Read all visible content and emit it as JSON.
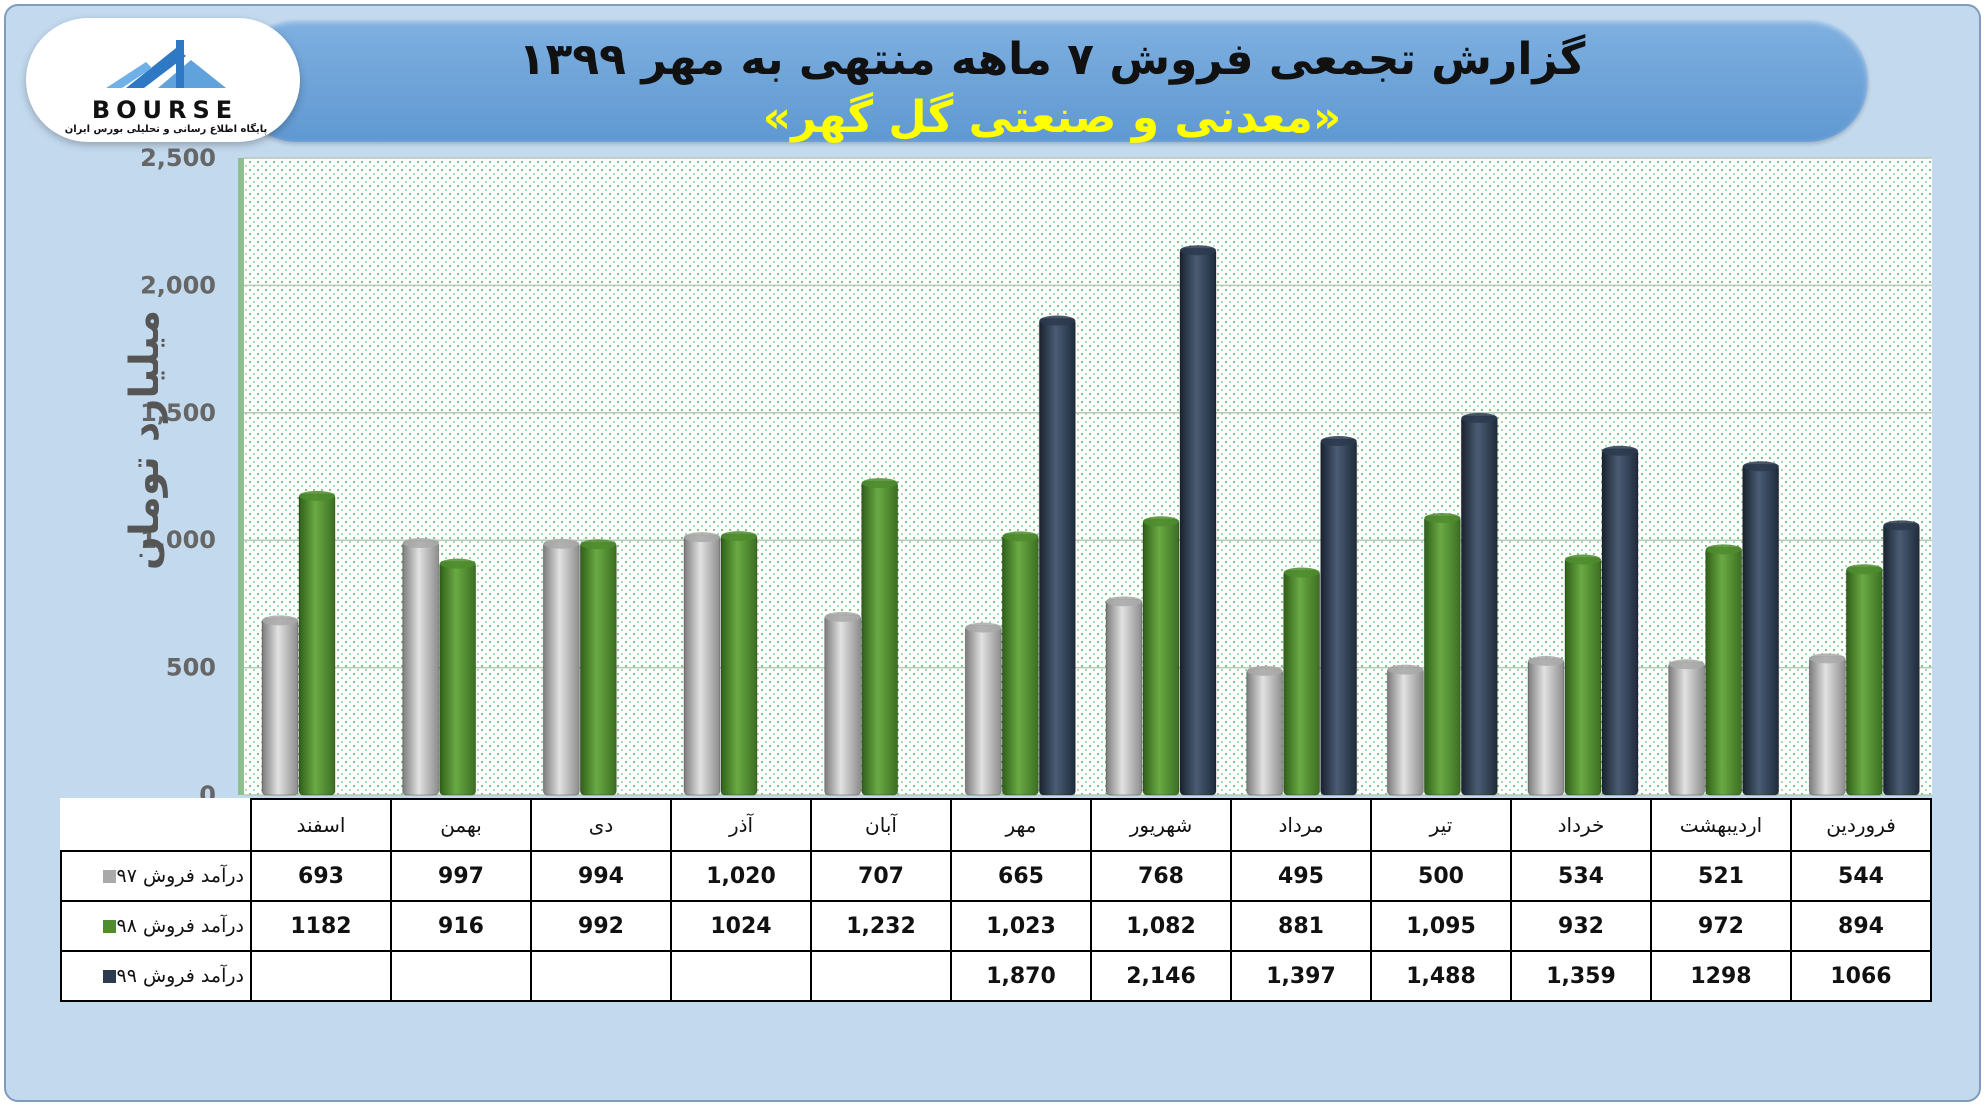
{
  "header": {
    "title": "گزارش تجمعی فروش ۷ ماهه منتهی به مهر ۱۳۹۹",
    "subtitle": "«معدنی و صنعتی گل گهر»"
  },
  "logo": {
    "wordmark": "BOURSE",
    "tagline": "پایگاه اطلاع رسانی و تحلیلی بورس ایران"
  },
  "chart_data": {
    "type": "bar",
    "ylabel": "میلیارد تومان",
    "ylim": [
      0,
      2500
    ],
    "yticks": [
      0,
      500,
      1000,
      1500,
      2000,
      2500
    ],
    "ytick_labels": [
      "0",
      "500",
      "1,000",
      "1,500",
      "2,000",
      "2,500"
    ],
    "grid": true,
    "legend_position": "table-left",
    "categories": [
      "اسفند",
      "بهمن",
      "دی",
      "آذر",
      "آبان",
      "مهر",
      "شهریور",
      "مرداد",
      "تیر",
      "خرداد",
      "اردیبهشت",
      "فروردین"
    ],
    "series": [
      {
        "name": "درآمد فروش ۹۷",
        "color": "#a9a9a9",
        "values": [
          693,
          997,
          994,
          1020,
          707,
          665,
          768,
          495,
          500,
          534,
          521,
          544
        ],
        "labels": [
          "693",
          "997",
          "994",
          "1,020",
          "707",
          "665",
          "768",
          "495",
          "500",
          "534",
          "521",
          "544"
        ]
      },
      {
        "name": "درآمد فروش ۹۸",
        "color": "#4e8c2e",
        "values": [
          1182,
          916,
          992,
          1024,
          1232,
          1023,
          1082,
          881,
          1095,
          932,
          972,
          894
        ],
        "labels": [
          "1182",
          "916",
          "992",
          "1024",
          "1,232",
          "1,023",
          "1,082",
          "881",
          "1,095",
          "932",
          "972",
          "894"
        ]
      },
      {
        "name": "درآمد فروش ۹۹",
        "color": "#2b3a4e",
        "values": [
          null,
          null,
          null,
          null,
          null,
          1870,
          2146,
          1397,
          1488,
          1359,
          1298,
          1066
        ],
        "labels": [
          "",
          "",
          "",
          "",
          "",
          "1,870",
          "2,146",
          "1,397",
          "1,488",
          "1,359",
          "1298",
          "1066"
        ]
      }
    ]
  }
}
